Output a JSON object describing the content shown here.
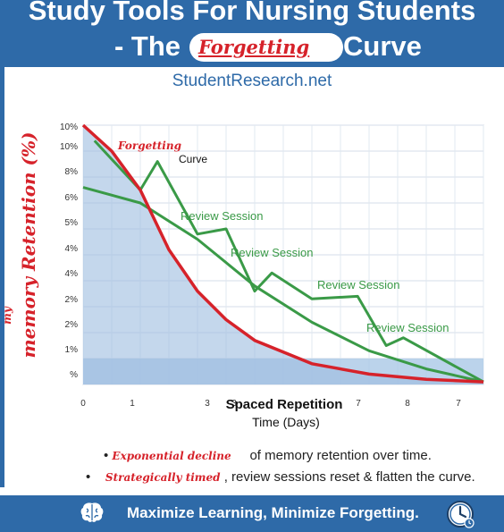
{
  "header": {
    "title_line1": "Study Tools For Nursing Students",
    "title_prefix": "- The",
    "title_highlight": "Forgetting",
    "title_suffix": "Curve",
    "site": "StudentResearch.net"
  },
  "side_label": {
    "main": "memory Retention (%)",
    "small": "my"
  },
  "bullets": [
    {
      "emphasis": "Exponential decline",
      "text": "of memory retention over time."
    },
    {
      "emphasis": "Strategically timed",
      "text": "review sessions reset & flatten the curve."
    }
  ],
  "footer": {
    "text": "Maximize Learning, Minimize Forgetting.",
    "left_icon": "brain-icon",
    "right_icon": "clock-icon"
  },
  "colors": {
    "header_blue": "#2e6aa8",
    "forgetting_red": "#d6222a",
    "review_green": "#3a9a47",
    "shade_blue": "#aac8e6"
  },
  "chart_data": {
    "type": "line",
    "ytick_labels": [
      "10%",
      "10%",
      "8%",
      "6%",
      "5%",
      "4%",
      "4%",
      "2%",
      "2%",
      "1%",
      "%"
    ],
    "xtick_labels": [
      "0",
      "1",
      "3",
      "3",
      "7",
      "8",
      "7"
    ],
    "xlabel_line1": "Spaced Repetition",
    "xlabel_line2": "Time (Days)",
    "legend_text_1": "Forgetting",
    "legend_text_2": "Curve",
    "annotations": [
      "Review Session",
      "Review Session",
      "Review Session",
      "Review Session"
    ],
    "grid": true,
    "series": [
      {
        "color": "#d6222a",
        "points": [
          [
            0,
            10.0
          ],
          [
            0.5,
            9.0
          ],
          [
            1,
            7.5
          ],
          [
            1.5,
            5.2
          ],
          [
            2,
            3.6
          ],
          [
            2.5,
            2.5
          ],
          [
            3,
            1.7
          ],
          [
            4,
            0.8
          ],
          [
            5,
            0.4
          ],
          [
            6,
            0.2
          ],
          [
            7,
            0.1
          ]
        ]
      },
      {
        "color": "#3a9a47",
        "points": [
          [
            0,
            7.6
          ],
          [
            1,
            7.0
          ],
          [
            2,
            5.6
          ],
          [
            3,
            3.8
          ],
          [
            4,
            2.4
          ],
          [
            5,
            1.3
          ],
          [
            6,
            0.6
          ],
          [
            7,
            0.1
          ]
        ]
      },
      {
        "color": "#3a9a47",
        "points": [
          [
            0.2,
            9.4
          ],
          [
            1,
            7.5
          ],
          [
            1.3,
            8.6
          ],
          [
            2,
            5.8
          ],
          [
            2.5,
            6.0
          ],
          [
            3,
            3.6
          ],
          [
            3.3,
            4.3
          ],
          [
            4,
            3.3
          ],
          [
            4.8,
            3.4
          ],
          [
            5.3,
            1.5
          ],
          [
            5.6,
            1.8
          ],
          [
            7,
            0.1
          ]
        ]
      }
    ]
  }
}
